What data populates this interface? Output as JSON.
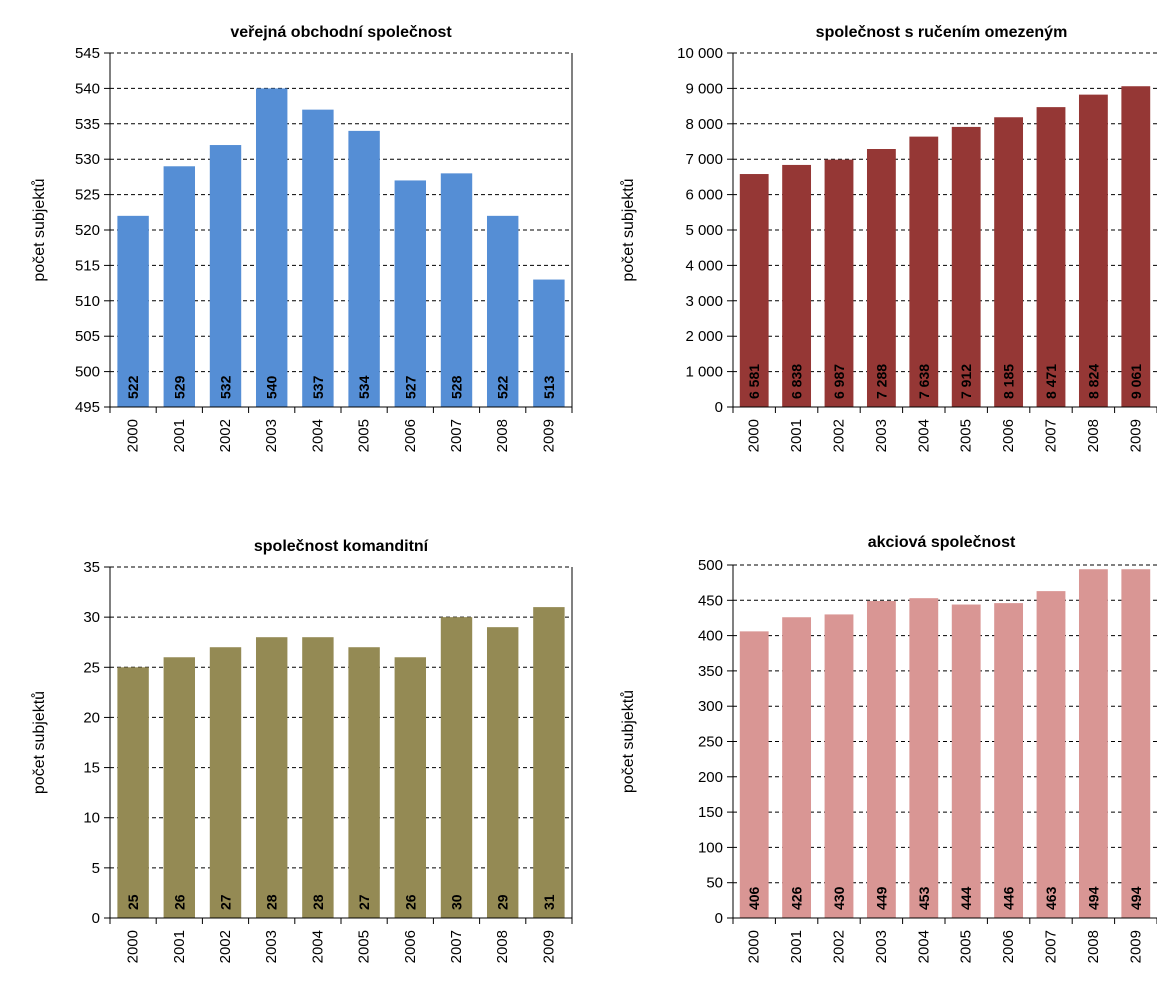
{
  "chart_data": [
    {
      "type": "bar",
      "title": "veřejná obchodní společnost",
      "ylabel": "počet subjektů",
      "xlabel": "",
      "categories": [
        "2000",
        "2001",
        "2002",
        "2003",
        "2004",
        "2005",
        "2006",
        "2007",
        "2008",
        "2009"
      ],
      "values": [
        522,
        529,
        532,
        540,
        537,
        534,
        527,
        528,
        522,
        513
      ],
      "data_labels": [
        "522",
        "529",
        "532",
        "540",
        "537",
        "534",
        "527",
        "528",
        "522",
        "513"
      ],
      "ylim": [
        495,
        545
      ],
      "yticks": [
        495,
        500,
        505,
        510,
        515,
        520,
        525,
        530,
        535,
        540,
        545
      ],
      "ytick_labels": [
        "495",
        "500",
        "505",
        "510",
        "515",
        "520",
        "525",
        "530",
        "535",
        "540",
        "545"
      ],
      "grid": true,
      "legend": "none",
      "bar_color": "#558ED5"
    },
    {
      "type": "bar",
      "title": "společnost s ručením omezeným",
      "ylabel": "počet subjektů",
      "xlabel": "",
      "categories": [
        "2000",
        "2001",
        "2002",
        "2003",
        "2004",
        "2005",
        "2006",
        "2007",
        "2008",
        "2009"
      ],
      "values": [
        6581,
        6838,
        6987,
        7288,
        7638,
        7912,
        8185,
        8471,
        8824,
        9061
      ],
      "data_labels": [
        "6 581",
        "6 838",
        "6 987",
        "7 288",
        "7 638",
        "7 912",
        "8 185",
        "8 471",
        "8 824",
        "9 061"
      ],
      "ylim": [
        0,
        10000
      ],
      "yticks": [
        0,
        1000,
        2000,
        3000,
        4000,
        5000,
        6000,
        7000,
        8000,
        9000,
        10000
      ],
      "ytick_labels": [
        "0",
        "1 000",
        "2 000",
        "3 000",
        "4 000",
        "5 000",
        "6 000",
        "7 000",
        "8 000",
        "9 000",
        "10 000"
      ],
      "grid": true,
      "legend": "none",
      "bar_color": "#953735"
    },
    {
      "type": "bar",
      "title": "společnost komanditní",
      "ylabel": "počet subjektů",
      "xlabel": "",
      "categories": [
        "2000",
        "2001",
        "2002",
        "2003",
        "2004",
        "2005",
        "2006",
        "2007",
        "2008",
        "2009"
      ],
      "values": [
        25,
        26,
        27,
        28,
        28,
        27,
        26,
        30,
        29,
        31
      ],
      "data_labels": [
        "25",
        "26",
        "27",
        "28",
        "28",
        "27",
        "26",
        "30",
        "29",
        "31"
      ],
      "ylim": [
        0,
        35
      ],
      "yticks": [
        0,
        5,
        10,
        15,
        20,
        25,
        30,
        35
      ],
      "ytick_labels": [
        "0",
        "5",
        "10",
        "15",
        "20",
        "25",
        "30",
        "35"
      ],
      "grid": true,
      "legend": "none",
      "bar_color": "#948A54"
    },
    {
      "type": "bar",
      "title": "akciová společnost",
      "ylabel": "počet subjektů",
      "xlabel": "",
      "categories": [
        "2000",
        "2001",
        "2002",
        "2003",
        "2004",
        "2005",
        "2006",
        "2007",
        "2008",
        "2009"
      ],
      "values": [
        406,
        426,
        430,
        449,
        453,
        444,
        446,
        463,
        494,
        494
      ],
      "data_labels": [
        "406",
        "426",
        "430",
        "449",
        "453",
        "444",
        "446",
        "463",
        "494",
        "494"
      ],
      "ylim": [
        0,
        500
      ],
      "yticks": [
        0,
        50,
        100,
        150,
        200,
        250,
        300,
        350,
        400,
        450,
        500
      ],
      "ytick_labels": [
        "0",
        "50",
        "100",
        "150",
        "200",
        "250",
        "300",
        "350",
        "400",
        "450",
        "500"
      ],
      "grid": true,
      "legend": "none",
      "bar_color": "#D99694"
    }
  ]
}
